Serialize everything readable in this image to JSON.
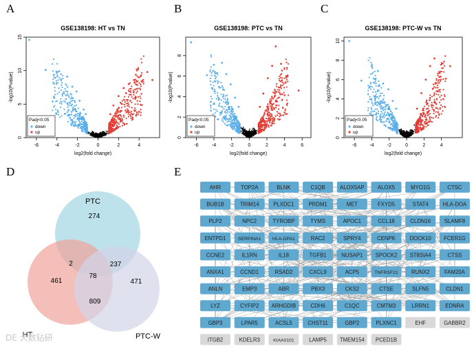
{
  "panel_letters": [
    "A",
    "B",
    "C",
    "D",
    "E"
  ],
  "volcano_common": {
    "xlabel": "log2(fold change)",
    "ylabel": "-log10(Pvalue)",
    "legend_title": "Padj<0.05",
    "legend_down": "down",
    "legend_up": "up",
    "colors": {
      "down": "#5aaeea",
      "up": "#e23b33",
      "ns": "#000000"
    }
  },
  "chart_data": [
    {
      "type": "scatter",
      "title": "GSE138198: HT vs TN",
      "xlabel": "log2(fold change)",
      "ylabel": "-log10(Pvalue)",
      "xlim": [
        -7,
        6
      ],
      "ylim": [
        0,
        15
      ],
      "xticks": [
        -6,
        -4,
        -2,
        0,
        2,
        4
      ],
      "yticks": [
        0,
        5,
        10,
        15
      ],
      "legend": [
        "down",
        "up"
      ],
      "legend_title": "Padj<0.05",
      "series": [
        {
          "name": "down",
          "values": [
            [
              -6.7,
              14.6
            ],
            [
              -5.1,
              10.1
            ],
            [
              -4.3,
              9.4
            ],
            [
              -3.6,
              8.7
            ],
            [
              -3.0,
              9.1
            ],
            [
              -2.5,
              7.6
            ],
            [
              -2.1,
              6.9
            ],
            [
              -1.8,
              5.5
            ],
            [
              -1.4,
              4.2
            ],
            [
              -1.2,
              3.5
            ]
          ]
        },
        {
          "name": "up",
          "values": [
            [
              1.2,
              3.5
            ],
            [
              1.5,
              4.8
            ],
            [
              2.0,
              6.2
            ],
            [
              2.5,
              7.4
            ],
            [
              3.0,
              8.0
            ],
            [
              3.5,
              8.6
            ],
            [
              4.2,
              9.3
            ],
            [
              4.8,
              9.8
            ],
            [
              5.3,
              8.6
            ],
            [
              3.9,
              10.2
            ]
          ]
        }
      ]
    },
    {
      "type": "scatter",
      "title": "GSE138198: PTC vs TN",
      "xlabel": "log2(fold change)",
      "ylabel": "-log10(Pvalue)",
      "xlim": [
        -7.2,
        7
      ],
      "ylim": [
        0,
        9.8
      ],
      "xticks": [
        -6,
        -4,
        -2,
        0,
        2,
        4,
        6
      ],
      "yticks": [
        0,
        2,
        4,
        6,
        8
      ],
      "legend": [
        "down",
        "up"
      ],
      "legend_title": "Padj<0.05",
      "series": [
        {
          "name": "down",
          "values": [
            [
              -6.6,
              9.3
            ],
            [
              -4.8,
              6.1
            ],
            [
              -3.9,
              5.5
            ],
            [
              -3.1,
              7.3
            ],
            [
              -2.6,
              6.2
            ],
            [
              -2.1,
              5.2
            ],
            [
              -1.6,
              3.9
            ],
            [
              -1.2,
              3.0
            ]
          ]
        },
        {
          "name": "up",
          "values": [
            [
              1.2,
              3.0
            ],
            [
              1.6,
              4.3
            ],
            [
              2.1,
              5.8
            ],
            [
              2.6,
              7.0
            ],
            [
              3.0,
              8.9
            ],
            [
              3.6,
              7.2
            ],
            [
              4.2,
              6.0
            ],
            [
              5.6,
              4.6
            ]
          ]
        }
      ]
    },
    {
      "type": "scatter",
      "title": "GSE138198: PTC-W vs TN",
      "xlabel": "log2(fold change)",
      "ylabel": "-log10(Pvalue)",
      "xlim": [
        -7.2,
        6.4
      ],
      "ylim": [
        0,
        10.4
      ],
      "xticks": [
        -6,
        -4,
        -2,
        0,
        2,
        4
      ],
      "yticks": [
        0,
        2,
        4,
        6,
        8,
        10
      ],
      "legend": [
        "down",
        "up"
      ],
      "legend_title": "Padj<0.05",
      "series": [
        {
          "name": "down",
          "values": [
            [
              -6.6,
              10.0
            ],
            [
              -5.2,
              5.9
            ],
            [
              -4.2,
              5.3
            ],
            [
              -3.3,
              6.9
            ],
            [
              -2.7,
              5.6
            ],
            [
              -2.1,
              5.0
            ],
            [
              -1.6,
              3.8
            ],
            [
              -1.2,
              3.0
            ]
          ]
        },
        {
          "name": "up",
          "values": [
            [
              1.2,
              3.0
            ],
            [
              1.7,
              4.6
            ],
            [
              2.2,
              6.0
            ],
            [
              2.7,
              7.4
            ],
            [
              3.2,
              8.2
            ],
            [
              3.8,
              6.7
            ],
            [
              4.5,
              6.1
            ],
            [
              5.0,
              7.4
            ]
          ]
        }
      ]
    },
    {
      "type": "venn",
      "sets": [
        "PTC",
        "HT",
        "PTC-W"
      ],
      "regions": {
        "PTC_only": 274,
        "HT_only": 461,
        "PTCW_only": 471,
        "PTC_HT": 2,
        "PTC_PTCW": 237,
        "HT_PTCW": 809,
        "all": 78
      },
      "colors": {
        "PTC": "#a8d8e4",
        "HT": "#f0a49a",
        "PTC-W": "#d2d4e8"
      }
    },
    {
      "type": "network",
      "hub_color": "#5fa8cf",
      "isolated_color": "#d9d9d9",
      "nodes": [
        [
          "AHR",
          "TOP2A",
          "BLNK",
          "C1QB",
          "ALOX5AP",
          "ALOX5",
          "MYO1G",
          "CTSC"
        ],
        [
          "BUB1B",
          "TRIM14",
          "PLXDC1",
          "PRDM1",
          "MET",
          "FXYD5",
          "STAT4",
          "HLA-DOA"
        ],
        [
          "PLP2",
          "NPC2",
          "TYROBP",
          "TYMS",
          "APOC1",
          "CCL18",
          "CLDN16",
          "SLAMF8"
        ],
        [
          "ENTPD1",
          "SERPINA1",
          "HLA-DPA1",
          "RAC2",
          "SPRY4",
          "CENPK",
          "DOCK10",
          "FCER1G"
        ],
        [
          "CCNE2",
          "IL1RN",
          "IL18",
          "TGFB1",
          "NUSAP1",
          "SPOCK2",
          "ST8SIA4",
          "CTSS"
        ],
        [
          "ANXA1",
          "CCND1",
          "RSAD2",
          "CXCL9",
          "ACP5",
          "TNFRSF21",
          "RUNX2",
          "FAM20A"
        ],
        [
          "ANLN",
          "EMP3",
          "ABR",
          "PBX3",
          "CKS2",
          "CTSE",
          "SLFN5",
          "CLDN1"
        ],
        [
          "LYZ",
          "CYFIP2",
          "ARHGDIB",
          "CDH6",
          "C1QC",
          "CMTM3",
          "LRRN1",
          "EDNRA"
        ],
        [
          "GBP3",
          "LPAR5",
          "ACSL5",
          "CHST11",
          "GBP2",
          "PLXNC1",
          "EHF",
          "GABBR2"
        ],
        [
          "ITGB2",
          "KDELR3",
          "KIAA0101",
          "LAMP5",
          "TMEM154",
          "PCED1B"
        ]
      ],
      "isolated": [
        "EHF",
        "GABBR2",
        "ITGB2",
        "KDELR3",
        "KIAA0101",
        "LAMP5",
        "TMEM154",
        "PCED1B"
      ]
    }
  ],
  "watermark": "DE 大数钻研"
}
